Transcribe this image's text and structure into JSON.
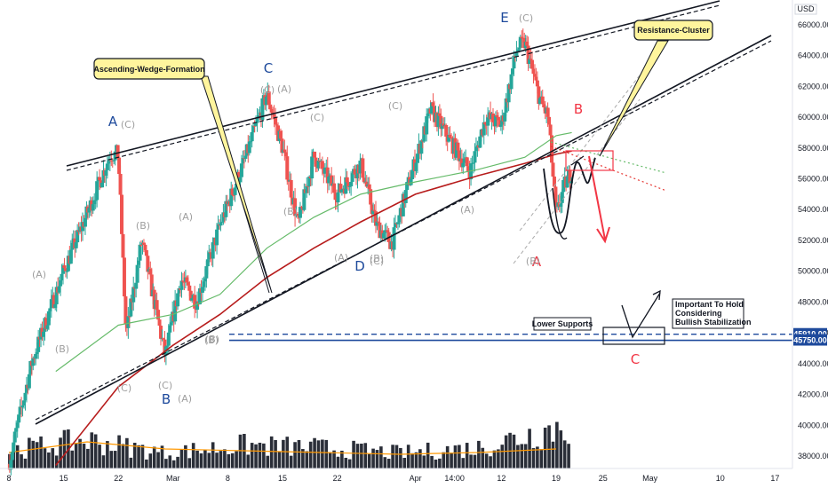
{
  "chart_data": {
    "type": "candlestick",
    "currency": "USD",
    "y_ticks": [
      "66000.00",
      "64000.00",
      "62000.00",
      "60000.00",
      "58000.00",
      "56000.00",
      "54000.00",
      "52000.00",
      "50000.00",
      "48000.00",
      "46000.00",
      "44000.00",
      "42000.00",
      "40000.00",
      "38000.00"
    ],
    "ylim": [
      37200,
      67200
    ],
    "x_ticks": [
      {
        "label": "8",
        "day": 0
      },
      {
        "label": "15",
        "day": 7
      },
      {
        "label": "22",
        "day": 14
      },
      {
        "label": "Mar",
        "day": 21
      },
      {
        "label": "8",
        "day": 28
      },
      {
        "label": "15",
        "day": 35
      },
      {
        "label": "22",
        "day": 42
      },
      {
        "label": "Apr",
        "day": 52
      },
      {
        "label": "14:00",
        "day": 57
      },
      {
        "label": "12",
        "day": 63
      },
      {
        "label": "19",
        "day": 70
      },
      {
        "label": "25",
        "day": 76
      },
      {
        "label": "May",
        "day": 82
      },
      {
        "label": "10",
        "day": 91
      },
      {
        "label": "17",
        "day": 98
      }
    ],
    "price_labels": [
      {
        "text": "45910.00",
        "value": 45910,
        "color": "#1e4a9c"
      },
      {
        "text": "45750.00",
        "value": 45750,
        "color": "#1e4a9c"
      }
    ],
    "support_levels": [
      45910,
      45750
    ],
    "ohlc_anchors": [
      [
        0,
        37500
      ],
      [
        3,
        44200
      ],
      [
        7,
        50000
      ],
      [
        11,
        55000
      ],
      [
        13,
        57600
      ],
      [
        14,
        57600
      ],
      [
        15,
        45800
      ],
      [
        17,
        52000
      ],
      [
        19,
        47000
      ],
      [
        20,
        44500
      ],
      [
        22,
        49500
      ],
      [
        24,
        48000
      ],
      [
        27,
        53000
      ],
      [
        30,
        57000
      ],
      [
        33,
        61500
      ],
      [
        35,
        58000
      ],
      [
        37,
        53000
      ],
      [
        39,
        57500
      ],
      [
        42,
        55000
      ],
      [
        45,
        57000
      ],
      [
        47,
        53000
      ],
      [
        49,
        51800
      ],
      [
        51,
        55500
      ],
      [
        54,
        60500
      ],
      [
        57,
        58000
      ],
      [
        59,
        56500
      ],
      [
        61,
        60000
      ],
      [
        63,
        59500
      ],
      [
        65,
        64500
      ],
      [
        66,
        64800
      ],
      [
        68,
        61000
      ],
      [
        69,
        60000
      ],
      [
        70,
        53500
      ],
      [
        71,
        55500
      ],
      [
        72,
        56500
      ]
    ],
    "volume_anchors": [
      [
        0,
        0.7
      ],
      [
        10,
        1.1
      ],
      [
        20,
        0.6
      ],
      [
        30,
        0.9
      ],
      [
        40,
        0.8
      ],
      [
        50,
        0.6
      ],
      [
        60,
        0.8
      ],
      [
        70,
        1.6
      ]
    ],
    "ma_green": [
      [
        6,
        43500
      ],
      [
        14,
        46500
      ],
      [
        21,
        47200
      ],
      [
        27,
        48500
      ],
      [
        33,
        51500
      ],
      [
        39,
        53500
      ],
      [
        45,
        55000
      ],
      [
        52,
        55800
      ],
      [
        60,
        56600
      ],
      [
        66,
        57400
      ],
      [
        70,
        58800
      ],
      [
        72,
        59000
      ]
    ],
    "ma_red": [
      [
        6,
        37400
      ],
      [
        14,
        42500
      ],
      [
        21,
        45200
      ],
      [
        27,
        47200
      ],
      [
        33,
        49600
      ],
      [
        39,
        51500
      ],
      [
        45,
        53200
      ],
      [
        52,
        55000
      ],
      [
        60,
        56200
      ],
      [
        66,
        57000
      ],
      [
        70,
        57600
      ],
      [
        72,
        57800
      ]
    ],
    "vol_ma": [
      [
        0,
        0.45
      ],
      [
        10,
        0.75
      ],
      [
        20,
        0.55
      ],
      [
        30,
        0.5
      ],
      [
        40,
        0.45
      ],
      [
        50,
        0.4
      ],
      [
        60,
        0.45
      ],
      [
        70,
        0.55
      ]
    ],
    "annotations": [
      {
        "text": "Ascending-Wedge-Formation"
      },
      {
        "text": "Resistance-Cluster"
      },
      {
        "text": "Lower Supports"
      },
      {
        "text": "Important To Hold Considering Bullish Stabilization",
        "lines": [
          "Important To Hold",
          "Considering",
          "Bullish Stabilization"
        ]
      }
    ],
    "waves_major": [
      {
        "text": "A",
        "color": "#1e4a9c"
      },
      {
        "text": "B",
        "color": "#1e4a9c"
      },
      {
        "text": "C",
        "color": "#1e4a9c"
      },
      {
        "text": "D",
        "color": "#1e4a9c"
      },
      {
        "text": "E",
        "color": "#1e4a9c"
      },
      {
        "text": "B",
        "color": "#f23645"
      },
      {
        "text": "A",
        "color": "#f23645"
      },
      {
        "text": "C",
        "color": "#f23645"
      }
    ],
    "waves_minor": [
      "(C)",
      "(A)",
      "(B)",
      "(A)",
      "(B)",
      "(C)",
      "(A)",
      "(C)",
      "(B)",
      "(A)",
      "(B)",
      "(C)",
      "(A)",
      "(B)",
      "(C)",
      "(A)",
      "(B)",
      "(C)",
      "(C)",
      "(B)",
      "(C)"
    ]
  }
}
